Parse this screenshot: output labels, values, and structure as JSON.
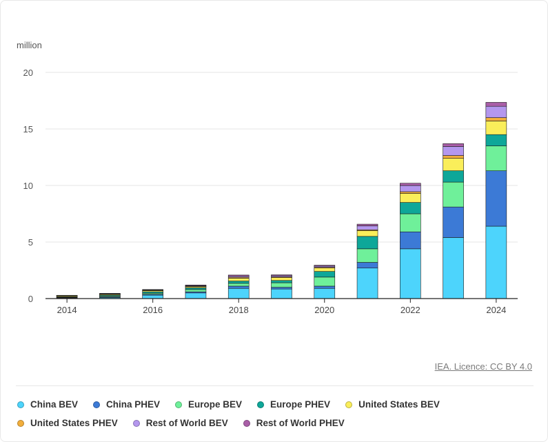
{
  "unit_label": "million",
  "licence": "IEA. Licence: CC BY 4.0",
  "chart_data": {
    "type": "bar",
    "stacked": true,
    "title": "",
    "xlabel": "",
    "ylabel": "million",
    "ylim": [
      0,
      20
    ],
    "yticks": [
      0,
      5,
      10,
      15,
      20
    ],
    "categories": [
      "2014",
      "2015",
      "2016",
      "2017",
      "2018",
      "2019",
      "2020",
      "2021",
      "2022",
      "2023",
      "2024"
    ],
    "x_tick_labels": [
      "2014",
      "",
      "2016",
      "",
      "2018",
      "",
      "2020",
      "",
      "2022",
      "",
      "2024"
    ],
    "legend_position": "bottom",
    "series": [
      {
        "name": "China BEV",
        "color": "#4dd4fc",
        "values": [
          0.05,
          0.1,
          0.3,
          0.5,
          0.9,
          0.85,
          0.9,
          2.7,
          4.4,
          5.4,
          6.4
        ]
      },
      {
        "name": "China PHEV",
        "color": "#3c7ad6",
        "values": [
          0.03,
          0.06,
          0.08,
          0.1,
          0.2,
          0.15,
          0.2,
          0.5,
          1.5,
          2.7,
          4.9
        ]
      },
      {
        "name": "Europe BEV",
        "color": "#6ff09a",
        "values": [
          0.04,
          0.08,
          0.1,
          0.2,
          0.25,
          0.4,
          0.8,
          1.2,
          1.6,
          2.2,
          2.2
        ]
      },
      {
        "name": "Europe PHEV",
        "color": "#0ea799",
        "values": [
          0.04,
          0.07,
          0.12,
          0.15,
          0.2,
          0.2,
          0.5,
          1.1,
          1.0,
          1.0,
          1.0
        ]
      },
      {
        "name": "United States BEV",
        "color": "#faee5a",
        "values": [
          0.07,
          0.07,
          0.09,
          0.1,
          0.25,
          0.25,
          0.3,
          0.5,
          0.8,
          1.1,
          1.2
        ]
      },
      {
        "name": "United States PHEV",
        "color": "#f2ae3c",
        "values": [
          0.04,
          0.04,
          0.05,
          0.05,
          0.08,
          0.07,
          0.07,
          0.08,
          0.15,
          0.25,
          0.3
        ]
      },
      {
        "name": "Rest of World BEV",
        "color": "#b497ee",
        "values": [
          0.01,
          0.02,
          0.03,
          0.05,
          0.1,
          0.1,
          0.1,
          0.35,
          0.55,
          0.8,
          1.0
        ]
      },
      {
        "name": "Rest of World PHEV",
        "color": "#a95ea7",
        "values": [
          0.01,
          0.02,
          0.03,
          0.05,
          0.1,
          0.08,
          0.08,
          0.15,
          0.2,
          0.25,
          0.35
        ]
      }
    ]
  }
}
